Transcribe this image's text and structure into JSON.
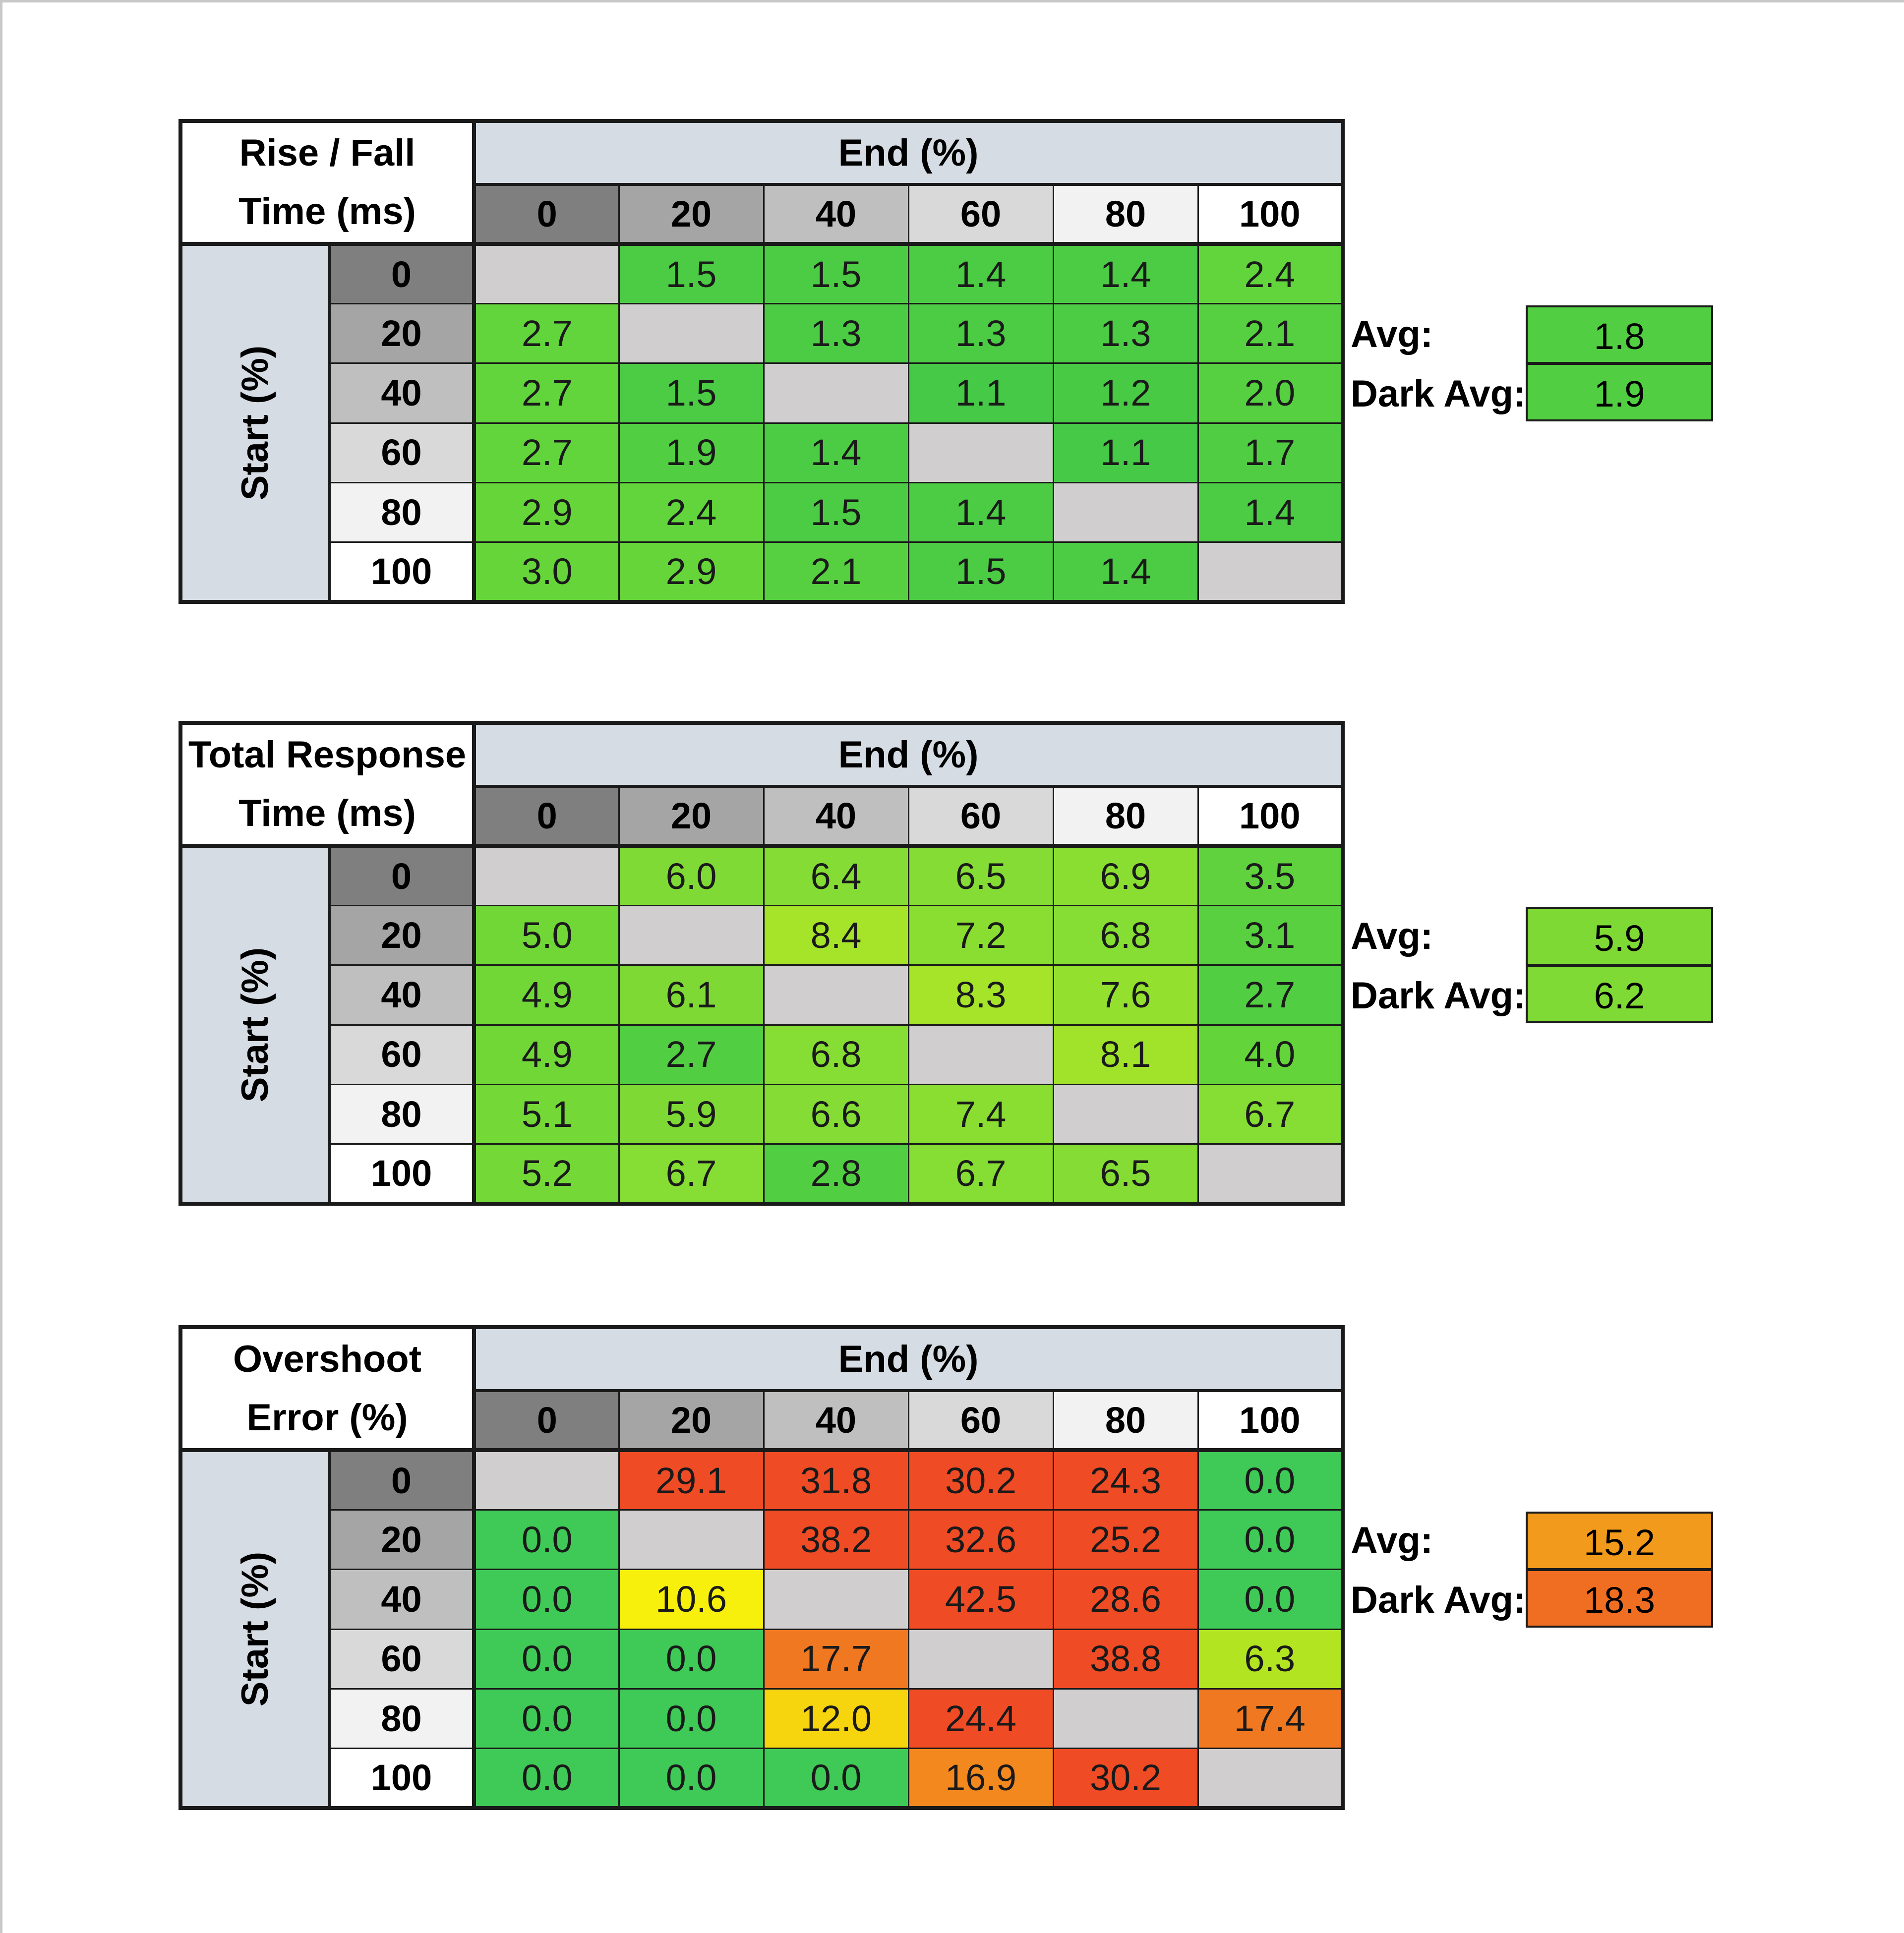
{
  "chart_data": [
    {
      "type": "heatmap",
      "title_lines": [
        "Rise / Fall",
        "Time (ms)"
      ],
      "xlabel": "End (%)",
      "ylabel": "Start (%)",
      "x": [
        "0",
        "20",
        "40",
        "60",
        "80",
        "100"
      ],
      "y": [
        "0",
        "20",
        "40",
        "60",
        "80",
        "100"
      ],
      "values": [
        [
          null,
          1.5,
          1.5,
          1.4,
          1.4,
          2.4
        ],
        [
          2.7,
          null,
          1.3,
          1.3,
          1.3,
          2.1
        ],
        [
          2.7,
          1.5,
          null,
          1.1,
          1.2,
          2.0
        ],
        [
          2.7,
          1.9,
          1.4,
          null,
          1.1,
          1.7
        ],
        [
          2.9,
          2.4,
          1.5,
          1.4,
          null,
          1.4
        ],
        [
          3.0,
          2.9,
          2.1,
          1.5,
          1.4,
          null
        ]
      ],
      "colors": [
        [
          null,
          "#4ccb44",
          "#4ccb44",
          "#4ccb44",
          "#4ccb44",
          "#62d43c"
        ],
        [
          "#62d43c",
          null,
          "#4ccb44",
          "#4ccb44",
          "#4ccb44",
          "#56d040"
        ],
        [
          "#62d43c",
          "#4ccb44",
          null,
          "#45c947",
          "#49ca45",
          "#56d040"
        ],
        [
          "#62d43c",
          "#52ce42",
          "#4ccb44",
          null,
          "#45c947",
          "#50cd43"
        ],
        [
          "#66d53a",
          "#62d43c",
          "#4ccb44",
          "#4ccb44",
          null,
          "#4ccb44"
        ],
        [
          "#66d53a",
          "#66d53a",
          "#56d040",
          "#4ccb44",
          "#4ccb44",
          null
        ]
      ],
      "value_labels": [
        [
          "",
          "1.5",
          "1.5",
          "1.4",
          "1.4",
          "2.4"
        ],
        [
          "2.7",
          "",
          "1.3",
          "1.3",
          "1.3",
          "2.1"
        ],
        [
          "2.7",
          "1.5",
          "",
          "1.1",
          "1.2",
          "2.0"
        ],
        [
          "2.7",
          "1.9",
          "1.4",
          "",
          "1.1",
          "1.7"
        ],
        [
          "2.9",
          "2.4",
          "1.5",
          "1.4",
          "",
          "1.4"
        ],
        [
          "3.0",
          "2.9",
          "2.1",
          "1.5",
          "1.4",
          ""
        ]
      ],
      "avg_label": "Avg:",
      "avg": "1.8",
      "avg_color": "#52ce42",
      "dark_avg_label": "Dark Avg:",
      "dark_avg": "1.9",
      "dark_avg_color": "#52ce42"
    },
    {
      "type": "heatmap",
      "title_lines": [
        "Total Response",
        "Time (ms)"
      ],
      "xlabel": "End (%)",
      "ylabel": "Start (%)",
      "x": [
        "0",
        "20",
        "40",
        "60",
        "80",
        "100"
      ],
      "y": [
        "0",
        "20",
        "40",
        "60",
        "80",
        "100"
      ],
      "values": [
        [
          null,
          6.0,
          6.4,
          6.5,
          6.9,
          3.5
        ],
        [
          5.0,
          null,
          8.4,
          7.2,
          6.8,
          3.1
        ],
        [
          4.9,
          6.1,
          null,
          8.3,
          7.6,
          2.7
        ],
        [
          4.9,
          2.7,
          6.8,
          null,
          8.1,
          4.0
        ],
        [
          5.1,
          5.9,
          6.6,
          7.4,
          null,
          6.7
        ],
        [
          5.2,
          6.7,
          2.8,
          6.7,
          6.5,
          null
        ]
      ],
      "colors": [
        [
          null,
          "#80da35",
          "#84dc34",
          "#84dc34",
          "#8ade32",
          "#5fd23d"
        ],
        [
          "#70d737",
          null,
          "#a6e42a",
          "#8ade32",
          "#86dd33",
          "#58d03f"
        ],
        [
          "#70d737",
          "#7fd935",
          null,
          "#a6e42a",
          "#94e02f",
          "#52ce42"
        ],
        [
          "#70d737",
          "#52ce42",
          "#86dd33",
          null,
          "#a1e32b",
          "#64d43b"
        ],
        [
          "#74d837",
          "#7fd935",
          "#84dc34",
          "#8ade32",
          null,
          "#86dd33"
        ],
        [
          "#74d837",
          "#86dd33",
          "#52ce42",
          "#86dd33",
          "#84dc34",
          null
        ]
      ],
      "value_labels": [
        [
          "",
          "6.0",
          "6.4",
          "6.5",
          "6.9",
          "3.5"
        ],
        [
          "5.0",
          "",
          "8.4",
          "7.2",
          "6.8",
          "3.1"
        ],
        [
          "4.9",
          "6.1",
          "",
          "8.3",
          "7.6",
          "2.7"
        ],
        [
          "4.9",
          "2.7",
          "6.8",
          "",
          "8.1",
          "4.0"
        ],
        [
          "5.1",
          "5.9",
          "6.6",
          "7.4",
          "",
          "6.7"
        ],
        [
          "5.2",
          "6.7",
          "2.8",
          "6.7",
          "6.5",
          ""
        ]
      ],
      "avg_label": "Avg:",
      "avg": "5.9",
      "avg_color": "#7fd935",
      "dark_avg_label": "Dark Avg:",
      "dark_avg": "6.2",
      "dark_avg_color": "#80da35"
    },
    {
      "type": "heatmap",
      "title_lines": [
        "Overshoot",
        "Error (%)"
      ],
      "xlabel": "End (%)",
      "ylabel": "Start (%)",
      "x": [
        "0",
        "20",
        "40",
        "60",
        "80",
        "100"
      ],
      "y": [
        "0",
        "20",
        "40",
        "60",
        "80",
        "100"
      ],
      "values": [
        [
          null,
          29.1,
          31.8,
          30.2,
          24.3,
          0.0
        ],
        [
          0.0,
          null,
          38.2,
          32.6,
          25.2,
          0.0
        ],
        [
          0.0,
          10.6,
          null,
          42.5,
          28.6,
          0.0
        ],
        [
          0.0,
          0.0,
          17.7,
          null,
          38.8,
          6.3
        ],
        [
          0.0,
          0.0,
          12.0,
          24.4,
          null,
          17.4
        ],
        [
          0.0,
          0.0,
          0.0,
          16.9,
          30.2,
          null
        ]
      ],
      "colors": [
        [
          null,
          "#ef4b25",
          "#ef4b25",
          "#ef4b25",
          "#ef4b25",
          "#3fc956"
        ],
        [
          "#3fc956",
          null,
          "#ef4b25",
          "#ef4b25",
          "#ef4b25",
          "#3fc956"
        ],
        [
          "#3fc956",
          "#f6f00c",
          null,
          "#ef4b25",
          "#ef4b25",
          "#3fc956"
        ],
        [
          "#3fc956",
          "#3fc956",
          "#f07821",
          null,
          "#ef4b25",
          "#b2e422"
        ],
        [
          "#3fc956",
          "#3fc956",
          "#f6d50e",
          "#ef4b25",
          null,
          "#f07821"
        ],
        [
          "#3fc956",
          "#3fc956",
          "#3fc956",
          "#f3881e",
          "#ef4b25",
          null
        ]
      ],
      "value_labels": [
        [
          "",
          "29.1",
          "31.8",
          "30.2",
          "24.3",
          "0.0"
        ],
        [
          "0.0",
          "",
          "38.2",
          "32.6",
          "25.2",
          "0.0"
        ],
        [
          "0.0",
          "10.6",
          "",
          "42.5",
          "28.6",
          "0.0"
        ],
        [
          "0.0",
          "0.0",
          "17.7",
          "",
          "38.8",
          "6.3"
        ],
        [
          "0.0",
          "0.0",
          "12.0",
          "24.4",
          "",
          "17.4"
        ],
        [
          "0.0",
          "0.0",
          "0.0",
          "16.9",
          "30.2",
          ""
        ]
      ],
      "avg_label": "Avg:",
      "avg": "15.2",
      "avg_color": "#f29a1b",
      "dark_avg_label": "Dark Avg:",
      "dark_avg": "18.3",
      "dark_avg_color": "#f06e22"
    }
  ],
  "header_colors": [
    "#7f7f7f",
    "#a5a5a5",
    "#bfbfbf",
    "#d9d9d9",
    "#f2f2f2",
    "#ffffff"
  ],
  "empty_cell_color": "#d0cece"
}
